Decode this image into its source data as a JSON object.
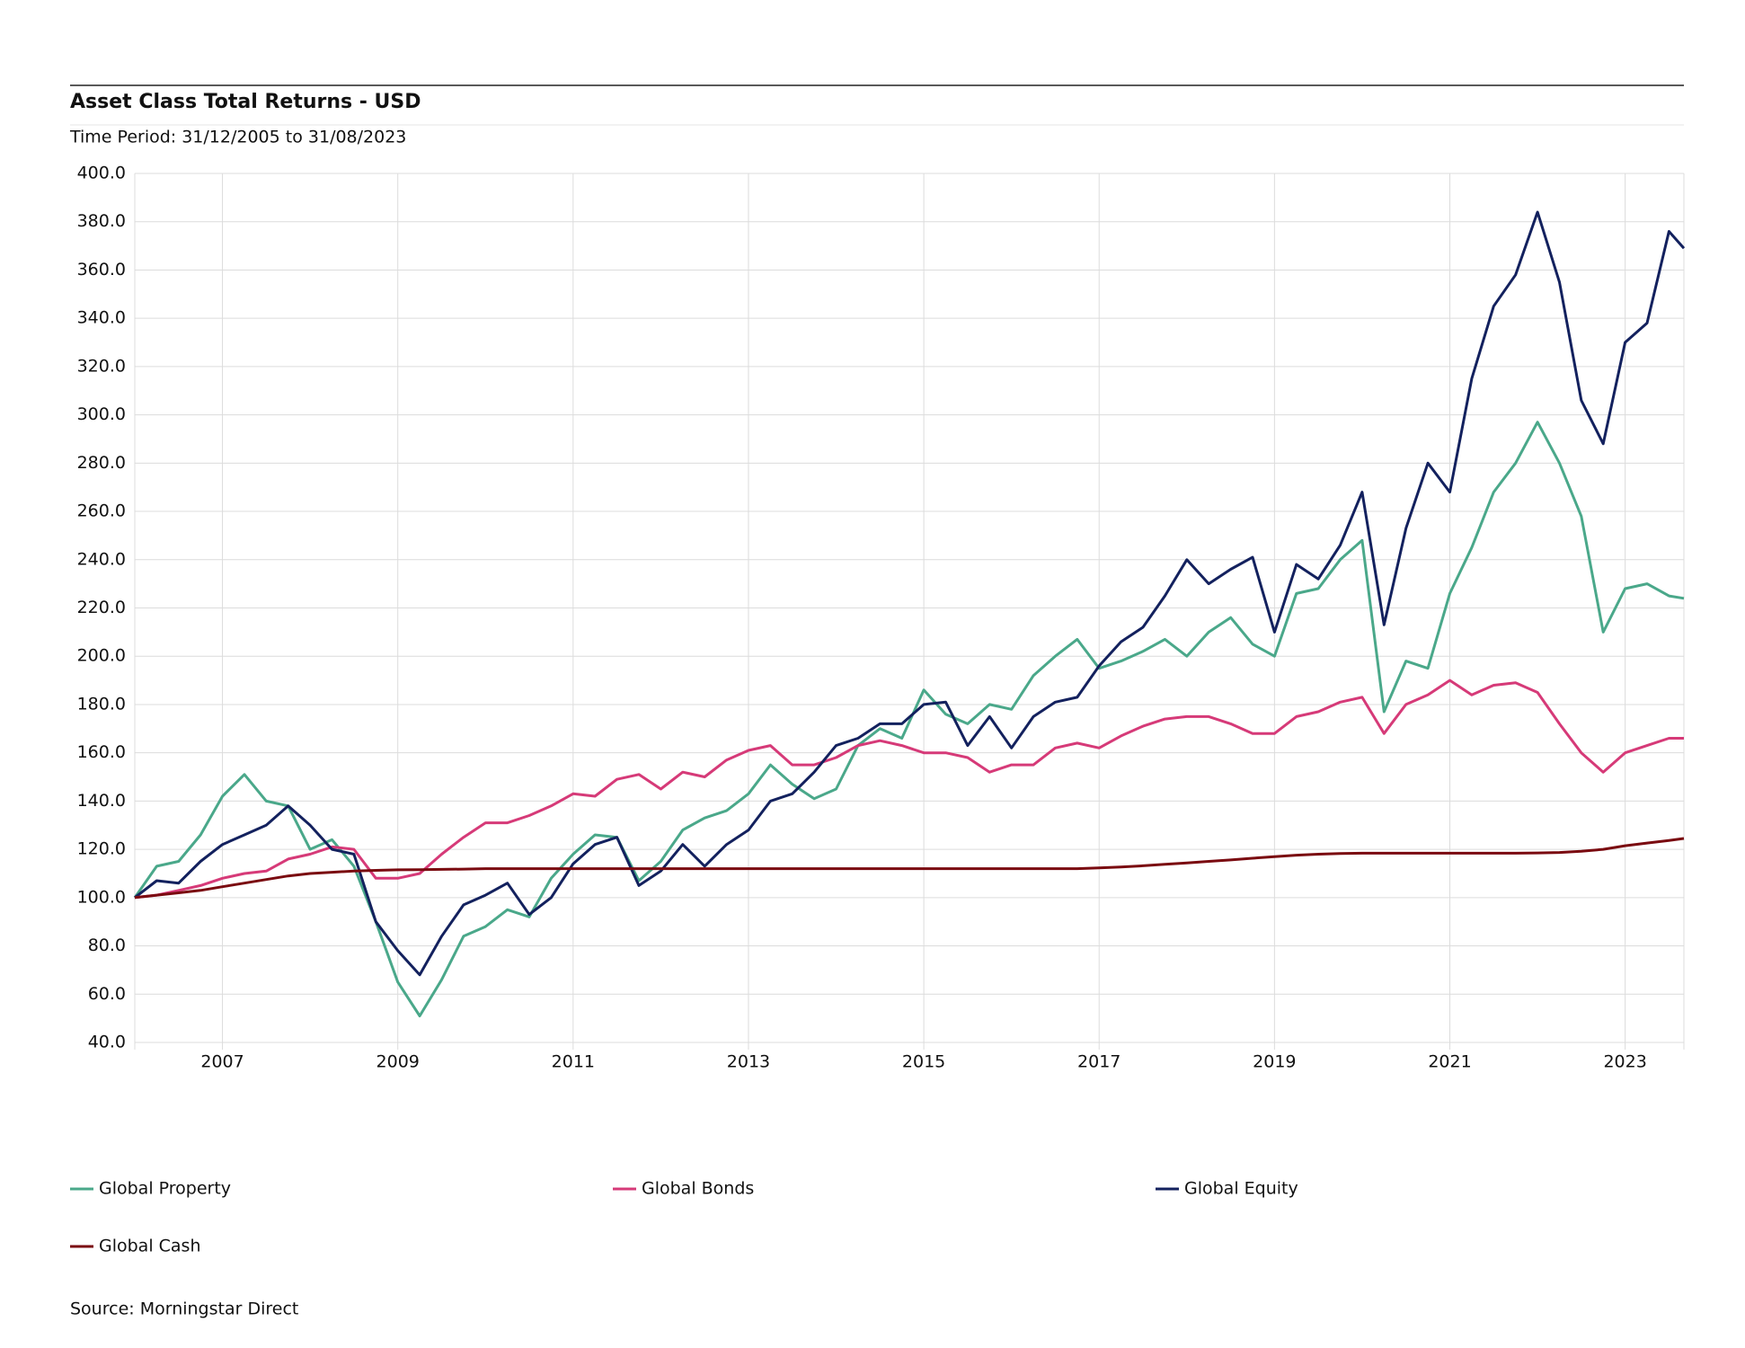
{
  "chart_data": {
    "type": "line",
    "title": "Asset Class Total Returns - USD",
    "subtitle": "Time Period: 31/12/2005 to 31/08/2023",
    "source": "Source: Morningstar Direct",
    "x": [
      2006,
      2006.25,
      2006.5,
      2006.75,
      2007,
      2007.25,
      2007.5,
      2007.75,
      2008,
      2008.25,
      2008.5,
      2008.75,
      2009,
      2009.25,
      2009.5,
      2009.75,
      2010,
      2010.25,
      2010.5,
      2010.75,
      2011,
      2011.25,
      2011.5,
      2011.75,
      2012,
      2012.25,
      2012.5,
      2012.75,
      2013,
      2013.25,
      2013.5,
      2013.75,
      2014,
      2014.25,
      2014.5,
      2014.75,
      2015,
      2015.25,
      2015.5,
      2015.75,
      2016,
      2016.25,
      2016.5,
      2016.75,
      2017,
      2017.25,
      2017.5,
      2017.75,
      2018,
      2018.25,
      2018.5,
      2018.75,
      2019,
      2019.25,
      2019.5,
      2019.75,
      2020,
      2020.25,
      2020.5,
      2020.75,
      2021,
      2021.25,
      2021.5,
      2021.75,
      2022,
      2022.25,
      2022.5,
      2022.75,
      2023,
      2023.25,
      2023.5,
      2023.67
    ],
    "xlim": [
      2006,
      2023.67
    ],
    "xticks": [
      2007,
      2009,
      2011,
      2013,
      2015,
      2017,
      2019,
      2021,
      2023
    ],
    "ylim": [
      40,
      400
    ],
    "yticks": [
      {
        "value": 40,
        "label": "40.0"
      },
      {
        "value": 60,
        "label": "60.0"
      },
      {
        "value": 80,
        "label": "80.0"
      },
      {
        "value": 100,
        "label": "100.0"
      },
      {
        "value": 120,
        "label": "120.0"
      },
      {
        "value": 140,
        "label": "140.0"
      },
      {
        "value": 160,
        "label": "160.0"
      },
      {
        "value": 180,
        "label": "180.0"
      },
      {
        "value": 200,
        "label": "200.0"
      },
      {
        "value": 220,
        "label": "220.0"
      },
      {
        "value": 240,
        "label": "240.0"
      },
      {
        "value": 260,
        "label": "260.0"
      },
      {
        "value": 280,
        "label": "280.0"
      },
      {
        "value": 300,
        "label": "300.0"
      },
      {
        "value": 320,
        "label": "320.0"
      },
      {
        "value": 340,
        "label": "340.0"
      },
      {
        "value": 360,
        "label": "360.0"
      },
      {
        "value": 380,
        "label": "380.0"
      },
      {
        "value": 400,
        "label": "400.0"
      }
    ],
    "grid": true,
    "series": [
      {
        "name": "Global Property",
        "color": "#4aa88a",
        "values": [
          100,
          113,
          115,
          126,
          142,
          151,
          140,
          138,
          120,
          124,
          113,
          90,
          65,
          51,
          66,
          84,
          88,
          95,
          92,
          108,
          118,
          126,
          125,
          107,
          115,
          128,
          133,
          136,
          143,
          155,
          147,
          141,
          145,
          163,
          170,
          166,
          186,
          176,
          172,
          180,
          178,
          192,
          200,
          207,
          195,
          198,
          202,
          207,
          200,
          210,
          216,
          205,
          200,
          226,
          228,
          240,
          248,
          177,
          198,
          195,
          226,
          245,
          268,
          280,
          297,
          280,
          258,
          210,
          228,
          230,
          225,
          224
        ]
      },
      {
        "name": "Global Bonds",
        "color": "#d63a78",
        "values": [
          100,
          101,
          103,
          105,
          108,
          110,
          111,
          116,
          118,
          121,
          120,
          108,
          108,
          110,
          118,
          125,
          131,
          131,
          134,
          138,
          143,
          142,
          149,
          151,
          145,
          152,
          150,
          157,
          161,
          163,
          155,
          155,
          158,
          163,
          165,
          163,
          160,
          160,
          158,
          152,
          155,
          155,
          162,
          164,
          162,
          167,
          171,
          174,
          175,
          175,
          172,
          168,
          168,
          175,
          177,
          181,
          183,
          168,
          180,
          184,
          190,
          184,
          188,
          189,
          185,
          172,
          160,
          152,
          160,
          163,
          166,
          166
        ]
      },
      {
        "name": "Global Equity",
        "color": "#13215e",
        "values": [
          100,
          107,
          106,
          115,
          122,
          126,
          130,
          138,
          130,
          120,
          118,
          90,
          78,
          68,
          84,
          97,
          101,
          106,
          93,
          100,
          114,
          122,
          125,
          105,
          111,
          122,
          113,
          122,
          128,
          140,
          143,
          152,
          163,
          166,
          172,
          172,
          180,
          181,
          163,
          175,
          162,
          175,
          181,
          183,
          196,
          206,
          212,
          225,
          240,
          230,
          236,
          241,
          210,
          238,
          232,
          246,
          268,
          213,
          253,
          280,
          268,
          315,
          345,
          358,
          384,
          355,
          306,
          288,
          330,
          338,
          376,
          369
        ]
      },
      {
        "name": "Global Cash",
        "color": "#7a0a10",
        "values": [
          100,
          101,
          102,
          103,
          104.5,
          106,
          107.5,
          109,
          110,
          110.5,
          111,
          111.3,
          111.5,
          111.6,
          111.7,
          111.8,
          112,
          112,
          112,
          112,
          112,
          112,
          112,
          112,
          112,
          112,
          112,
          112,
          112,
          112,
          112,
          112,
          112,
          112,
          112,
          112,
          112,
          112,
          112,
          112,
          112,
          112,
          112,
          112,
          112.3,
          112.7,
          113.2,
          113.8,
          114.4,
          115,
          115.6,
          116.3,
          117,
          117.6,
          118,
          118.3,
          118.4,
          118.4,
          118.4,
          118.4,
          118.4,
          118.4,
          118.4,
          118.4,
          118.5,
          118.7,
          119.2,
          120,
          121.5,
          122.6,
          123.7,
          124.5
        ]
      }
    ]
  }
}
